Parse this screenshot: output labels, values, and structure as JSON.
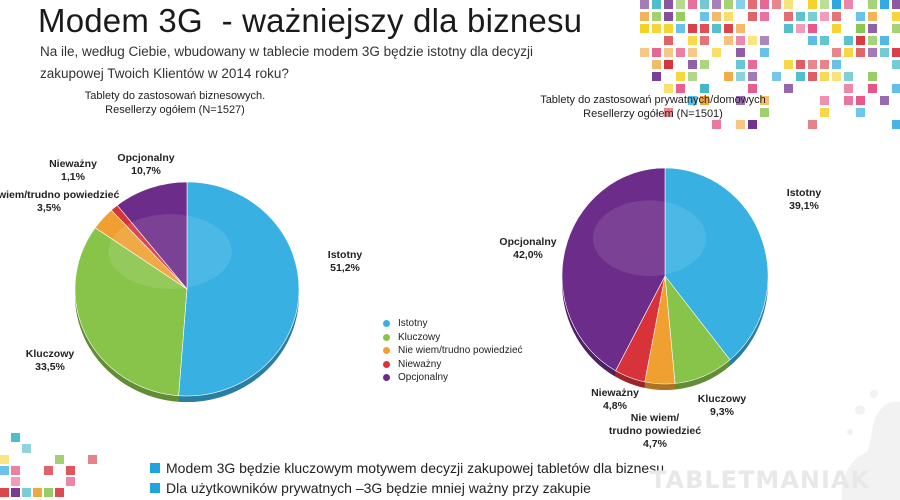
{
  "header": {
    "title": "Modem 3G  - ważniejszy dla biznesu",
    "question": "Na ile, według Ciebie, wbudowany w tablecie modem 3G będzie istotny dla decyzji zakupowej Twoich Klientów w 2014 roku?"
  },
  "legend": {
    "items": [
      {
        "label": "Istotny",
        "color": "#38b0e2"
      },
      {
        "label": "Kluczowy",
        "color": "#88c44a"
      },
      {
        "label": "Nie wiem/trudno powiedzieć",
        "color": "#f0a030"
      },
      {
        "label": "Nieważny",
        "color": "#d8323a"
      },
      {
        "label": "Opcjonalny",
        "color": "#6c2c8a"
      }
    ]
  },
  "chart_data": [
    {
      "type": "pie",
      "subtitle": [
        "Tablety do zastosowań biznesowych.",
        "Resellerzy ogółem (N=1527)"
      ],
      "slices": [
        {
          "label": "Istotny",
          "value": 51.2,
          "display": "51,2%",
          "color": "#38b0e2"
        },
        {
          "label": "Kluczowy",
          "value": 33.5,
          "display": "33,5%",
          "color": "#88c44a"
        },
        {
          "label": "Nie wiem/trudno powiedzieć",
          "value": 3.5,
          "display": "3,5%",
          "color": "#f0a030"
        },
        {
          "label": "Nieważny",
          "value": 1.1,
          "display": "1,1%",
          "color": "#d8323a"
        },
        {
          "label": "Opcjonalny",
          "value": 10.7,
          "display": "10,7%",
          "color": "#6c2c8a"
        }
      ]
    },
    {
      "type": "pie",
      "subtitle": [
        "Tablety do zastosowań prywatnych/domowych",
        "Resellerzy ogółem (N=1501)"
      ],
      "slices": [
        {
          "label": "Istotny",
          "value": 39.1,
          "display": "39,1%",
          "color": "#38b0e2"
        },
        {
          "label": "Kluczowy",
          "value": 9.3,
          "display": "9,3%",
          "color": "#88c44a"
        },
        {
          "label": "Nie wiem/ trudno powiedzieć",
          "value": 4.7,
          "display": "4,7%",
          "color": "#f0a030"
        },
        {
          "label": "Nieważny",
          "value": 4.8,
          "display": "4,8%",
          "color": "#d8323a"
        },
        {
          "label": "Opcjonalny",
          "value": 42.0,
          "display": "42,0%",
          "color": "#6c2c8a"
        }
      ]
    }
  ],
  "bullets": [
    {
      "text": "Modem 3G będzie kluczowym motywem decyzji zakupowej tabletów dla biznesu",
      "color": "#1ea5e0"
    },
    {
      "text": "Dla użytkowników prywatnych –3G będzie mniej ważny przy zakupie",
      "color": "#1ea5e0"
    }
  ],
  "logo": "TABLETMANIAK"
}
